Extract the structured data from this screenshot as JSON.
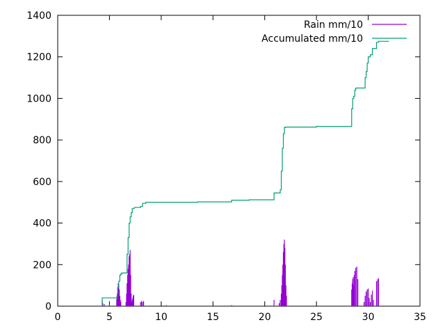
{
  "chart_data": {
    "type": "line",
    "title": "",
    "xlabel": "",
    "ylabel": "",
    "xlim": [
      0,
      35
    ],
    "ylim": [
      0,
      1400
    ],
    "xticks": [
      0,
      5,
      10,
      15,
      20,
      25,
      30,
      35
    ],
    "yticks": [
      0,
      200,
      400,
      600,
      800,
      1000,
      1200,
      1400
    ],
    "grid": false,
    "legend_position": "top-right",
    "series": [
      {
        "name": "Rain mm/10",
        "style": "impulses",
        "color": "#9400d3",
        "x": [
          4.3,
          4.35,
          4.5,
          5.0,
          5.7,
          5.75,
          5.8,
          5.85,
          5.9,
          5.95,
          6.0,
          6.05,
          6.1,
          6.6,
          6.65,
          6.7,
          6.75,
          6.8,
          6.85,
          6.9,
          6.95,
          7.0,
          7.05,
          7.1,
          7.15,
          7.2,
          7.25,
          7.3,
          7.35,
          8.0,
          8.1,
          8.2,
          8.3,
          10.5,
          16.8,
          20.9,
          21.4,
          21.5,
          21.6,
          21.65,
          21.7,
          21.75,
          21.8,
          21.85,
          21.9,
          21.95,
          22.0,
          22.05,
          22.1,
          28.4,
          28.45,
          28.5,
          28.55,
          28.6,
          28.65,
          28.7,
          28.8,
          28.9,
          29.0,
          29.6,
          29.7,
          29.8,
          29.9,
          30.0,
          30.1,
          30.2,
          30.3,
          30.4,
          30.5,
          30.8,
          30.9,
          31.0
        ],
        "values": [
          30,
          15,
          10,
          10,
          35,
          60,
          90,
          110,
          100,
          80,
          50,
          30,
          20,
          20,
          60,
          110,
          150,
          180,
          200,
          240,
          250,
          270,
          150,
          60,
          20,
          30,
          40,
          50,
          55,
          20,
          25,
          20,
          25,
          5,
          5,
          30,
          15,
          30,
          60,
          100,
          150,
          200,
          260,
          300,
          320,
          280,
          200,
          100,
          50,
          80,
          110,
          130,
          140,
          100,
          150,
          170,
          185,
          190,
          130,
          20,
          50,
          70,
          80,
          85,
          40,
          20,
          55,
          75,
          30,
          120,
          130,
          135
        ]
      },
      {
        "name": "Accumulated mm/10",
        "style": "steps",
        "color": "#009e73",
        "x": [
          4.3,
          5.7,
          5.8,
          5.9,
          6.0,
          6.1,
          6.2,
          6.7,
          6.8,
          6.9,
          7.0,
          7.1,
          7.2,
          7.4,
          8.0,
          8.2,
          8.5,
          10.0,
          13.5,
          16.8,
          18.5,
          20.9,
          21.5,
          21.6,
          21.7,
          21.8,
          21.9,
          22.0,
          25.0,
          28.4,
          28.5,
          28.6,
          28.7,
          28.8,
          29.0,
          29.7,
          29.8,
          29.9,
          30.0,
          30.2,
          30.4,
          30.8,
          31.0,
          31.5,
          32.0
        ],
        "values": [
          40,
          45,
          90,
          120,
          150,
          155,
          160,
          250,
          330,
          400,
          430,
          450,
          470,
          475,
          480,
          495,
          500,
          500,
          502,
          510,
          512,
          545,
          560,
          650,
          760,
          830,
          860,
          862,
          865,
          950,
          1000,
          1010,
          1040,
          1050,
          1050,
          1100,
          1130,
          1170,
          1200,
          1210,
          1240,
          1270,
          1275,
          1275,
          1275
        ]
      }
    ]
  }
}
